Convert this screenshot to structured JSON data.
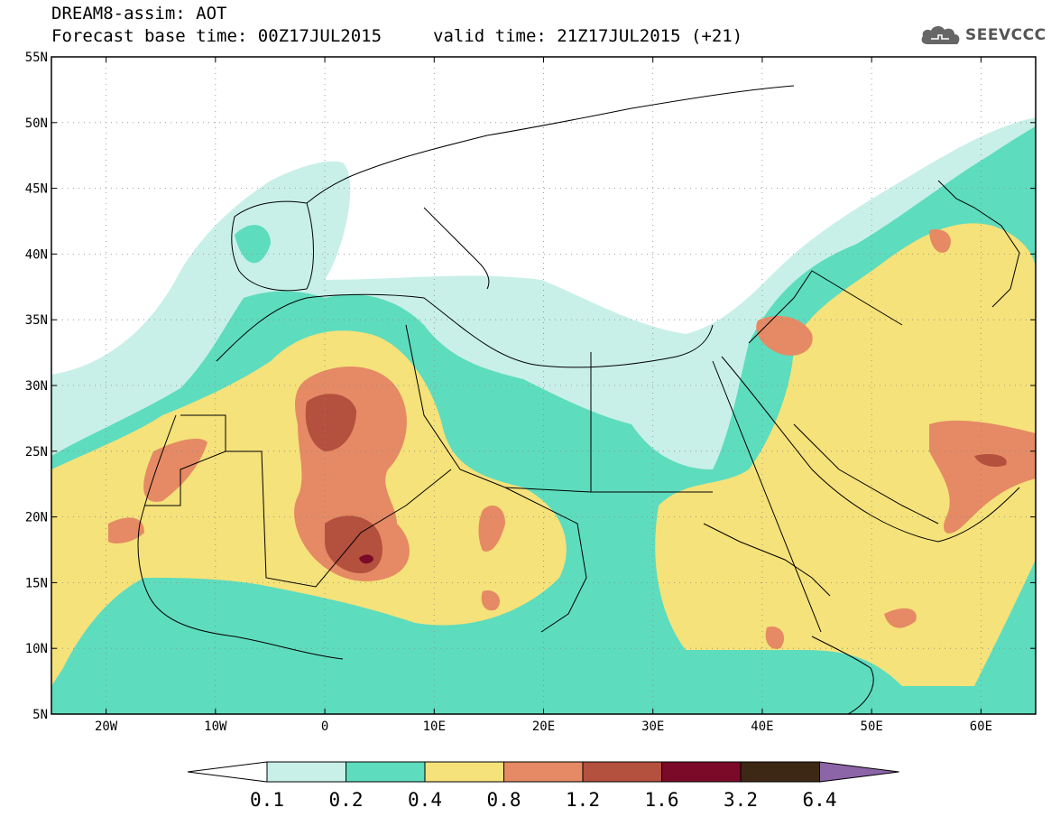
{
  "header": {
    "line1": "DREAM8-assim: AOT",
    "line2": "Forecast base time: 00Z17JUL2015",
    "valid": "valid time: 21Z17JUL2015 (+21)",
    "logo": "SEEVCCC"
  },
  "map": {
    "lon_range": [
      -25,
      65
    ],
    "lat_range": [
      5,
      55
    ],
    "lat_ticks": [
      {
        "v": 55,
        "label": "55N"
      },
      {
        "v": 50,
        "label": "50N"
      },
      {
        "v": 45,
        "label": "45N"
      },
      {
        "v": 40,
        "label": "40N"
      },
      {
        "v": 35,
        "label": "35N"
      },
      {
        "v": 30,
        "label": "30N"
      },
      {
        "v": 25,
        "label": "25N"
      },
      {
        "v": 20,
        "label": "20N"
      },
      {
        "v": 15,
        "label": "15N"
      },
      {
        "v": 10,
        "label": "10N"
      },
      {
        "v": 5,
        "label": "5N"
      }
    ],
    "lon_ticks": [
      {
        "v": -20,
        "label": "20W"
      },
      {
        "v": -10,
        "label": "10W"
      },
      {
        "v": 0,
        "label": "0"
      },
      {
        "v": 10,
        "label": "10E"
      },
      {
        "v": 20,
        "label": "20E"
      },
      {
        "v": 30,
        "label": "30E"
      },
      {
        "v": 40,
        "label": "40E"
      },
      {
        "v": 50,
        "label": "50E"
      },
      {
        "v": 60,
        "label": "60E"
      }
    ],
    "grid": "dotted",
    "colors": {
      "c01": "#c8f0e8",
      "c02": "#5edcbe",
      "c04": "#f5e27a",
      "c08": "#e58a64",
      "c12": "#b4503e",
      "c16": "#7a0a28",
      "c32": "#3c2814",
      "c64": "#8c64a8",
      "border": "#000000"
    }
  },
  "legend": {
    "bins": [
      {
        "color": "#c8f0e8"
      },
      {
        "color": "#5edcbe"
      },
      {
        "color": "#f5e27a"
      },
      {
        "color": "#e58a64"
      },
      {
        "color": "#b4503e"
      },
      {
        "color": "#7a0a28"
      },
      {
        "color": "#3c2814"
      }
    ],
    "low_arrow_color": "#ffffff",
    "high_arrow_color": "#8c64a8",
    "labels": [
      "0.1",
      "0.2",
      "0.4",
      "0.8",
      "1.2",
      "1.6",
      "3.2",
      "6.4"
    ]
  }
}
